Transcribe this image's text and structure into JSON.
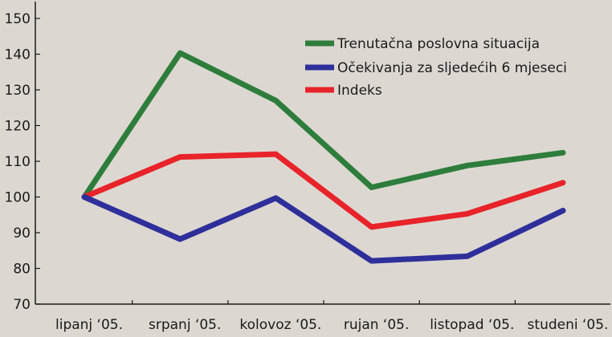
{
  "chart_data": {
    "type": "line",
    "categories": [
      "lipanj ‘05.",
      "srpanj ‘05.",
      "kolovoz ‘05.",
      "rujan ‘05.",
      "listopad ‘05.",
      "studeni ‘05."
    ],
    "ylim": [
      70,
      150
    ],
    "yticks": [
      70,
      80,
      90,
      100,
      110,
      120,
      130,
      140,
      150
    ],
    "grid": false,
    "legend_position": "top-right",
    "series": [
      {
        "name": "Trenutačna poslovna situacija",
        "color": "#2e7d3c",
        "values": [
          100,
          140.3,
          127.0,
          102.7,
          108.8,
          112.4
        ]
      },
      {
        "name": "Očekivanja za sljedećih 6 mjeseci",
        "color": "#2f2f9b",
        "values": [
          100,
          88.2,
          99.7,
          82.1,
          83.4,
          96.2
        ]
      },
      {
        "name": "Indeks",
        "color": "#e8232a",
        "values": [
          100,
          111.2,
          112.0,
          91.6,
          95.3,
          104.0
        ]
      }
    ]
  }
}
